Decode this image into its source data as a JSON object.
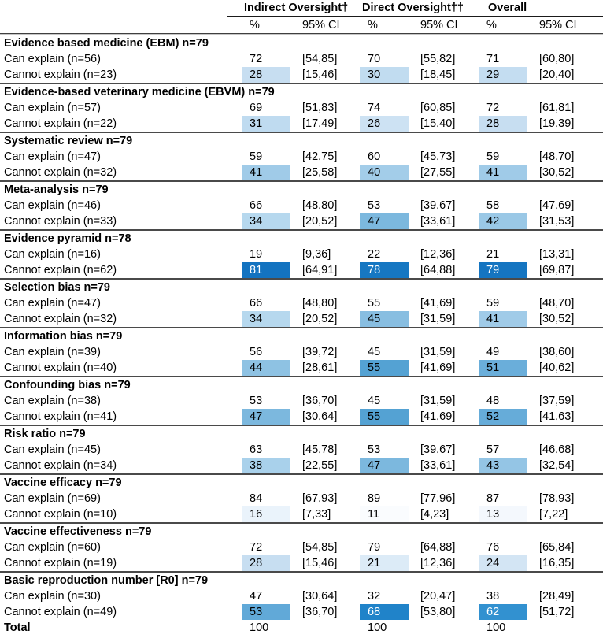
{
  "table": {
    "col_groups": [
      {
        "label": "Indirect Oversight†"
      },
      {
        "label": "Direct Oversight††"
      },
      {
        "label": "Overall"
      }
    ],
    "subheaders": {
      "pct": "%",
      "ci": "95% CI"
    },
    "groups": [
      {
        "title": "Evidence based medicine (EBM) n=79",
        "rows": [
          {
            "label": "Can explain (n=56)",
            "shaded": false,
            "cells": [
              {
                "pct": 72,
                "ci": "[54,85]"
              },
              {
                "pct": 70,
                "ci": "[55,82]"
              },
              {
                "pct": 71,
                "ci": "[60,80]"
              }
            ]
          },
          {
            "label": "Cannot explain (n=23)",
            "shaded": true,
            "cells": [
              {
                "pct": 28,
                "ci": "[15,46]"
              },
              {
                "pct": 30,
                "ci": "[18,45]"
              },
              {
                "pct": 29,
                "ci": "[20,40]"
              }
            ]
          }
        ]
      },
      {
        "title": "Evidence-based veterinary medicine (EBVM) n=79",
        "rows": [
          {
            "label": "Can explain (n=57)",
            "shaded": false,
            "cells": [
              {
                "pct": 69,
                "ci": "[51,83]"
              },
              {
                "pct": 74,
                "ci": "[60,85]"
              },
              {
                "pct": 72,
                "ci": "[61,81]"
              }
            ]
          },
          {
            "label": "Cannot explain (n=22)",
            "shaded": true,
            "cells": [
              {
                "pct": 31,
                "ci": "[17,49]"
              },
              {
                "pct": 26,
                "ci": "[15,40]"
              },
              {
                "pct": 28,
                "ci": "[19,39]"
              }
            ]
          }
        ]
      },
      {
        "title": "Systematic review n=79",
        "rows": [
          {
            "label": "Can explain (n=47)",
            "shaded": false,
            "cells": [
              {
                "pct": 59,
                "ci": "[42,75]"
              },
              {
                "pct": 60,
                "ci": "[45,73]"
              },
              {
                "pct": 59,
                "ci": "[48,70]"
              }
            ]
          },
          {
            "label": "Cannot explain (n=32)",
            "shaded": true,
            "cells": [
              {
                "pct": 41,
                "ci": "[25,58]"
              },
              {
                "pct": 40,
                "ci": "[27,55]"
              },
              {
                "pct": 41,
                "ci": "[30,52]"
              }
            ]
          }
        ]
      },
      {
        "title": "Meta-analysis n=79",
        "rows": [
          {
            "label": "Can explain (n=46)",
            "shaded": false,
            "cells": [
              {
                "pct": 66,
                "ci": "[48,80]"
              },
              {
                "pct": 53,
                "ci": "[39,67]"
              },
              {
                "pct": 58,
                "ci": "[47,69]"
              }
            ]
          },
          {
            "label": "Cannot explain (n=33)",
            "shaded": true,
            "cells": [
              {
                "pct": 34,
                "ci": "[20,52]"
              },
              {
                "pct": 47,
                "ci": "[33,61]"
              },
              {
                "pct": 42,
                "ci": "[31,53]"
              }
            ]
          }
        ]
      },
      {
        "title": "Evidence pyramid n=78",
        "rows": [
          {
            "label": "Can explain (n=16)",
            "shaded": false,
            "cells": [
              {
                "pct": 19,
                "ci": "[9,36]"
              },
              {
                "pct": 22,
                "ci": "[12,36]"
              },
              {
                "pct": 21,
                "ci": "[13,31]"
              }
            ]
          },
          {
            "label": "Cannot explain (n=62)",
            "shaded": true,
            "cells": [
              {
                "pct": 81,
                "ci": "[64,91]"
              },
              {
                "pct": 78,
                "ci": "[64,88]"
              },
              {
                "pct": 79,
                "ci": "[69,87]"
              }
            ]
          }
        ]
      },
      {
        "title": "Selection bias n=79",
        "rows": [
          {
            "label": "Can explain (n=47)",
            "shaded": false,
            "cells": [
              {
                "pct": 66,
                "ci": "[48,80]"
              },
              {
                "pct": 55,
                "ci": "[41,69]"
              },
              {
                "pct": 59,
                "ci": "[48,70]"
              }
            ]
          },
          {
            "label": "Cannot explain (n=32)",
            "shaded": true,
            "cells": [
              {
                "pct": 34,
                "ci": "[20,52]"
              },
              {
                "pct": 45,
                "ci": "[31,59]"
              },
              {
                "pct": 41,
                "ci": "[30,52]"
              }
            ]
          }
        ]
      },
      {
        "title": "Information bias n=79",
        "rows": [
          {
            "label": "Can explain (n=39)",
            "shaded": false,
            "cells": [
              {
                "pct": 56,
                "ci": "[39,72]"
              },
              {
                "pct": 45,
                "ci": "[31,59]"
              },
              {
                "pct": 49,
                "ci": "[38,60]"
              }
            ]
          },
          {
            "label": "Cannot explain (n=40)",
            "shaded": true,
            "cells": [
              {
                "pct": 44,
                "ci": "[28,61]"
              },
              {
                "pct": 55,
                "ci": "[41,69]"
              },
              {
                "pct": 51,
                "ci": "[40,62]"
              }
            ]
          }
        ]
      },
      {
        "title": "Confounding bias n=79",
        "rows": [
          {
            "label": "Can explain (n=38)",
            "shaded": false,
            "cells": [
              {
                "pct": 53,
                "ci": "[36,70]"
              },
              {
                "pct": 45,
                "ci": "[31,59]"
              },
              {
                "pct": 48,
                "ci": "[37,59]"
              }
            ]
          },
          {
            "label": "Cannot explain (n=41)",
            "shaded": true,
            "cells": [
              {
                "pct": 47,
                "ci": "[30,64]"
              },
              {
                "pct": 55,
                "ci": "[41,69]"
              },
              {
                "pct": 52,
                "ci": "[41,63]"
              }
            ]
          }
        ]
      },
      {
        "title": "Risk ratio n=79",
        "rows": [
          {
            "label": "Can explain (n=45)",
            "shaded": false,
            "cells": [
              {
                "pct": 63,
                "ci": "[45,78]"
              },
              {
                "pct": 53,
                "ci": "[39,67]"
              },
              {
                "pct": 57,
                "ci": "[46,68]"
              }
            ]
          },
          {
            "label": "Cannot explain (n=34)",
            "shaded": true,
            "cells": [
              {
                "pct": 38,
                "ci": "[22,55]"
              },
              {
                "pct": 47,
                "ci": "[33,61]"
              },
              {
                "pct": 43,
                "ci": "[32,54]"
              }
            ]
          }
        ]
      },
      {
        "title": "Vaccine efficacy n=79",
        "rows": [
          {
            "label": "Can explain (n=69)",
            "shaded": false,
            "cells": [
              {
                "pct": 84,
                "ci": "[67,93]"
              },
              {
                "pct": 89,
                "ci": "[77,96]"
              },
              {
                "pct": 87,
                "ci": "[78,93]"
              }
            ]
          },
          {
            "label": "Cannot explain (n=10)",
            "shaded": true,
            "cells": [
              {
                "pct": 16,
                "ci": "[7,33]"
              },
              {
                "pct": 11,
                "ci": "[4,23]"
              },
              {
                "pct": 13,
                "ci": "[7,22]"
              }
            ]
          }
        ]
      },
      {
        "title": "Vaccine effectiveness n=79",
        "rows": [
          {
            "label": "Can explain (n=60)",
            "shaded": false,
            "cells": [
              {
                "pct": 72,
                "ci": "[54,85]"
              },
              {
                "pct": 79,
                "ci": "[64,88]"
              },
              {
                "pct": 76,
                "ci": "[65,84]"
              }
            ]
          },
          {
            "label": "Cannot explain (n=19)",
            "shaded": true,
            "cells": [
              {
                "pct": 28,
                "ci": "[15,46]"
              },
              {
                "pct": 21,
                "ci": "[12,36]"
              },
              {
                "pct": 24,
                "ci": "[16,35]"
              }
            ]
          }
        ]
      },
      {
        "title": "Basic reproduction number [R0] n=79",
        "rows": [
          {
            "label": "Can explain (n=30)",
            "shaded": false,
            "cells": [
              {
                "pct": 47,
                "ci": "[30,64]"
              },
              {
                "pct": 32,
                "ci": "[20,47]"
              },
              {
                "pct": 38,
                "ci": "[28,49]"
              }
            ]
          },
          {
            "label": "Cannot explain (n=49)",
            "shaded": true,
            "cells": [
              {
                "pct": 53,
                "ci": "[36,70]"
              },
              {
                "pct": 68,
                "ci": "[53,80]"
              },
              {
                "pct": 62,
                "ci": "[51,72]"
              }
            ]
          }
        ]
      }
    ],
    "total": {
      "label": "Total",
      "values": [
        100,
        100,
        100
      ]
    }
  },
  "heatmap": {
    "stops": [
      [
        0,
        "#ffffff"
      ],
      [
        11,
        "#fafcfe"
      ],
      [
        16,
        "#eaf3fb"
      ],
      [
        21,
        "#dcebf7"
      ],
      [
        28,
        "#c7def1"
      ],
      [
        34,
        "#b6d8ee"
      ],
      [
        41,
        "#a0cbe8"
      ],
      [
        47,
        "#7cb8de"
      ],
      [
        53,
        "#61a9d8"
      ],
      [
        55,
        "#54a2d3"
      ],
      [
        62,
        "#3291d0"
      ],
      [
        68,
        "#2083c9"
      ],
      [
        81,
        "#1373c0"
      ],
      [
        100,
        "#0a5ca8"
      ]
    ],
    "white_text_threshold": 60
  }
}
